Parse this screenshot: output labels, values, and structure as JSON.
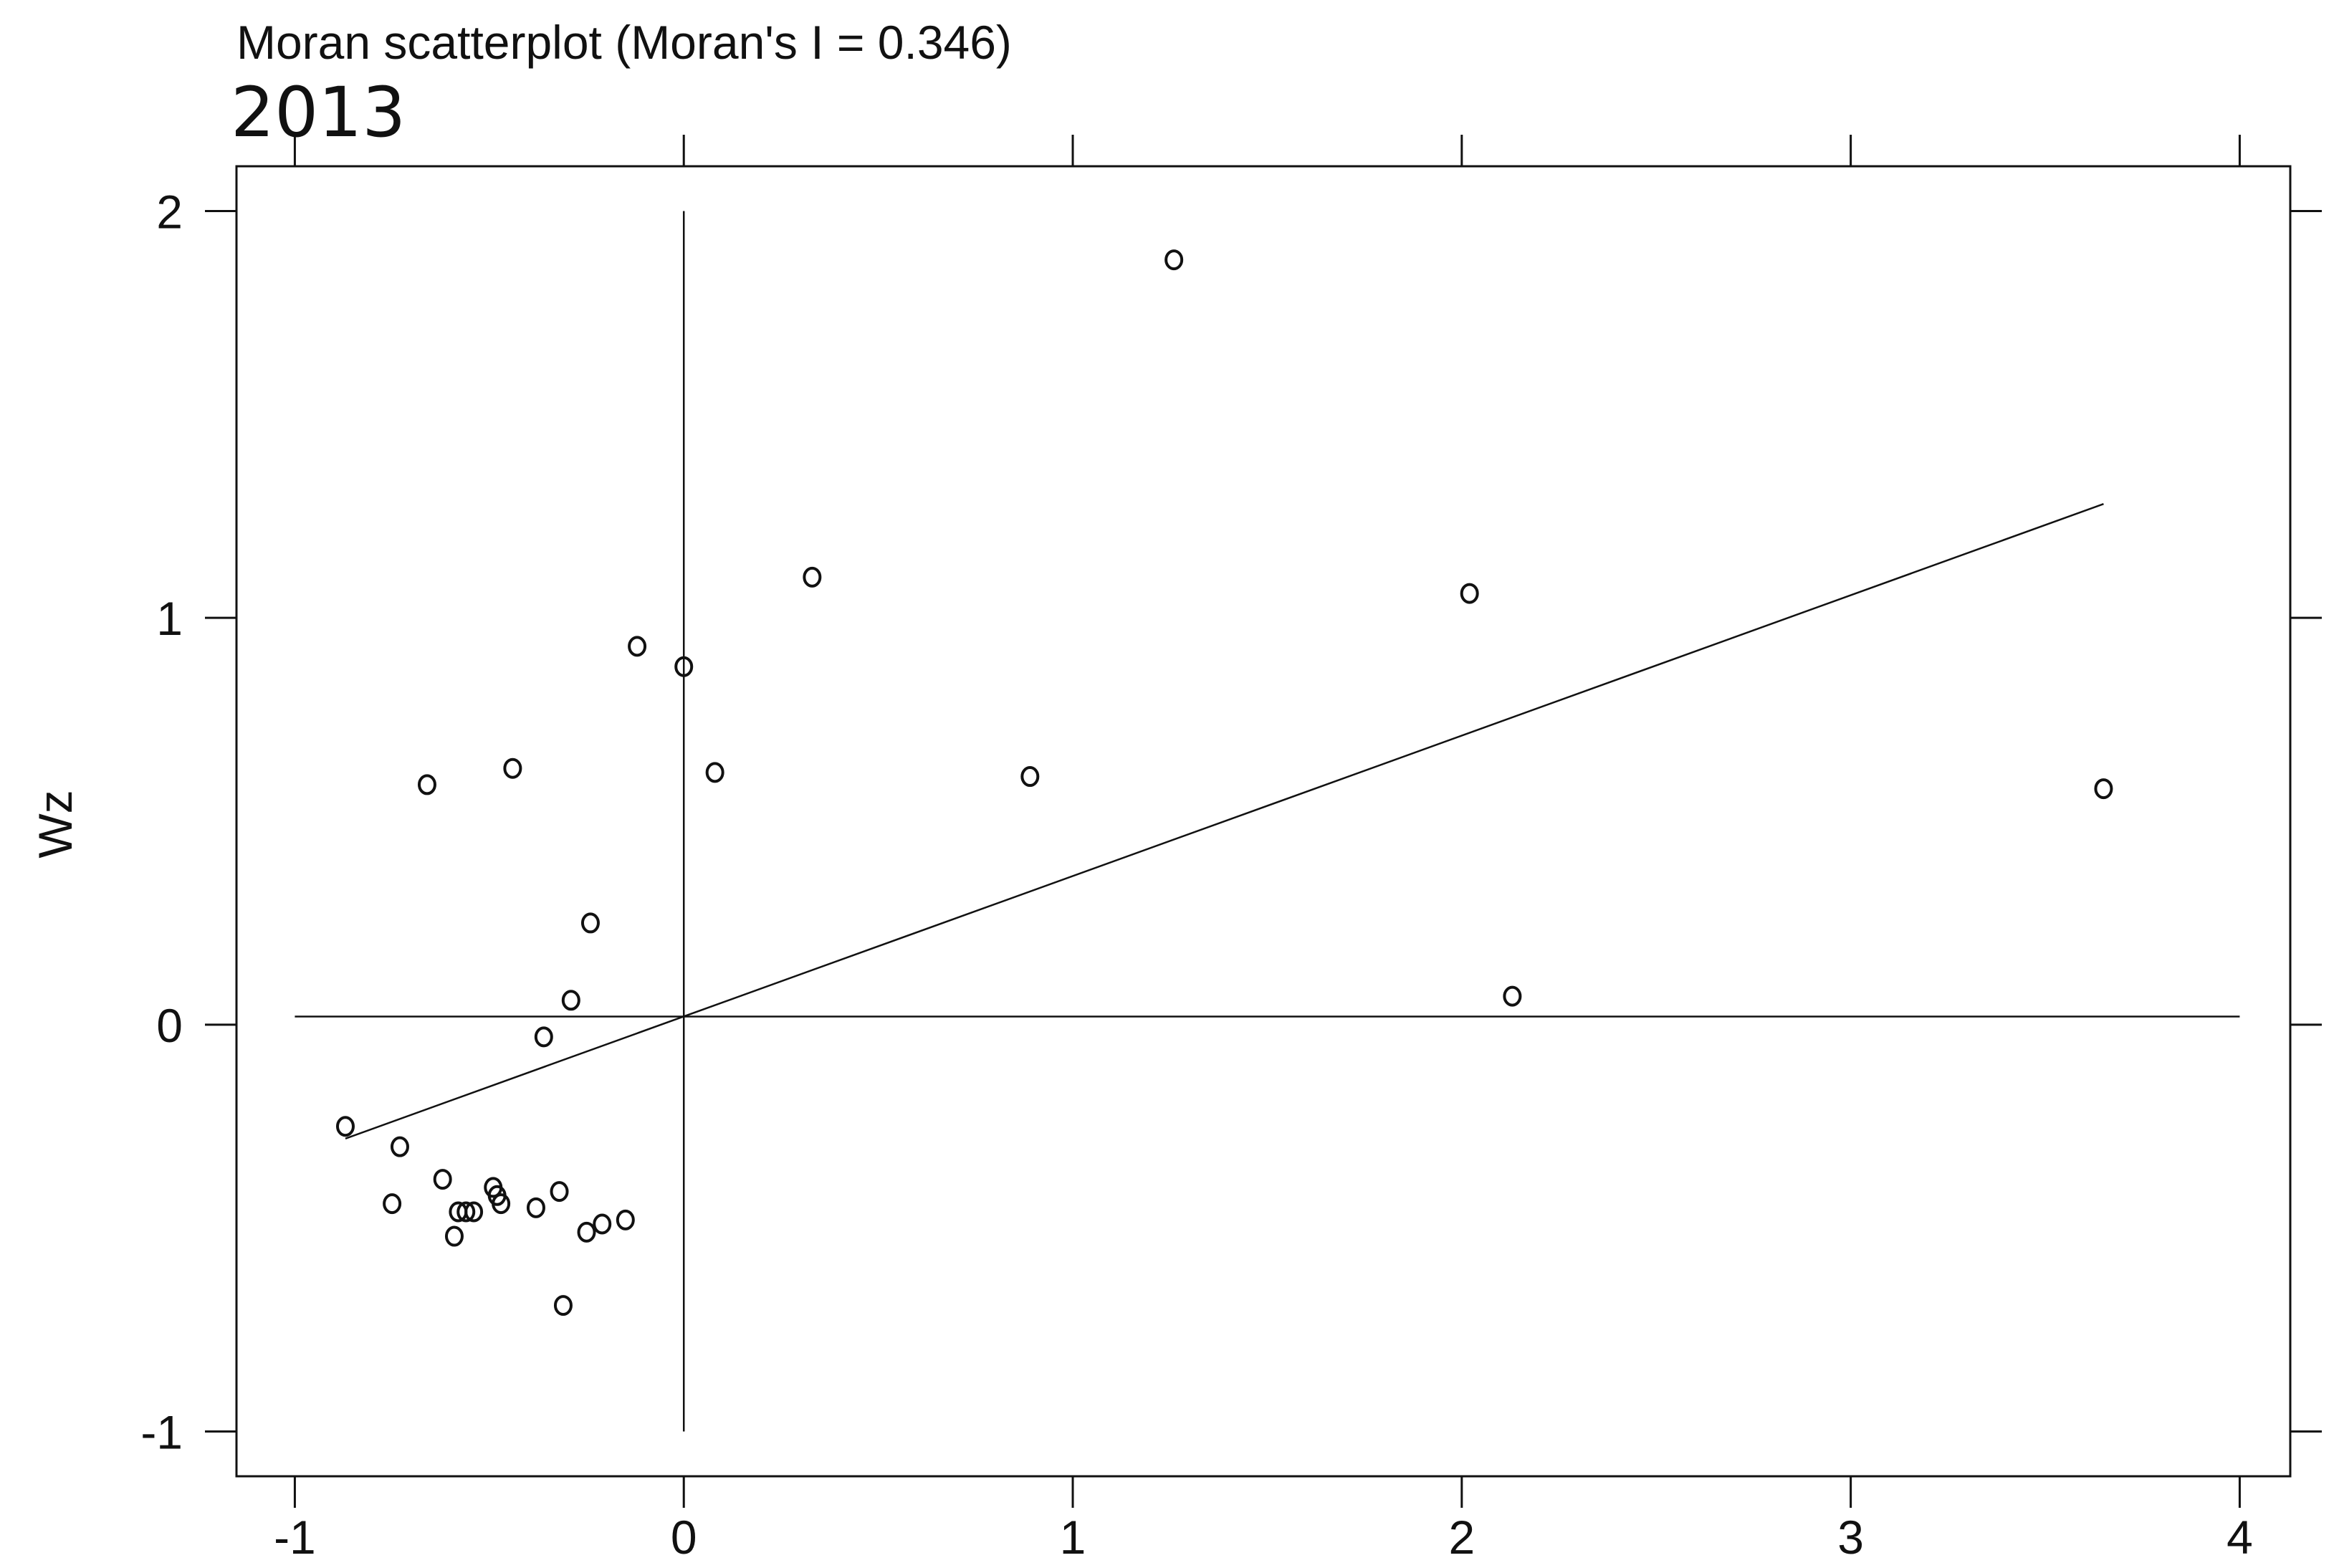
{
  "chart_data": {
    "type": "scatter",
    "title": "Moran scatterplot (Moran's I = 0.346)",
    "subtitle": "2013",
    "xlabel": "",
    "ylabel": "Wz",
    "xlim": [
      -1.15,
      4.13
    ],
    "ylim": [
      -1.11,
      2.11
    ],
    "x_ticks": [
      -1,
      0,
      1,
      2,
      3,
      4
    ],
    "y_ticks": [
      -1,
      0,
      1,
      2
    ],
    "x_tick_labels": [
      "-1",
      "0",
      "1",
      "2",
      "3",
      "4"
    ],
    "y_tick_labels": [
      "-1",
      "0",
      "1",
      "2"
    ],
    "grid": false,
    "legend": "none",
    "colors": {
      "points": "#111111",
      "lines": "#111111",
      "frame": "#111111"
    },
    "reference_lines": {
      "vertical_x": 0,
      "horizontal_y": 0.02,
      "vertical_span": [
        -1,
        2
      ],
      "horizontal_span": [
        -1,
        4
      ]
    },
    "fit_line": {
      "x": [
        -0.87,
        3.65
      ],
      "y": [
        -0.28,
        1.28
      ]
    },
    "points": [
      {
        "x": 1.26,
        "y": 1.88
      },
      {
        "x": 2.02,
        "y": 1.06
      },
      {
        "x": 3.65,
        "y": 0.58
      },
      {
        "x": 2.13,
        "y": 0.07
      },
      {
        "x": 0.33,
        "y": 1.1
      },
      {
        "x": 0.89,
        "y": 0.61
      },
      {
        "x": 0.08,
        "y": 0.62
      },
      {
        "x": 0.0,
        "y": 0.88
      },
      {
        "x": -0.12,
        "y": 0.93
      },
      {
        "x": -0.44,
        "y": 0.63
      },
      {
        "x": -0.66,
        "y": 0.59
      },
      {
        "x": -0.24,
        "y": 0.25
      },
      {
        "x": -0.29,
        "y": 0.06
      },
      {
        "x": -0.36,
        "y": -0.03
      },
      {
        "x": -0.87,
        "y": -0.25
      },
      {
        "x": -0.73,
        "y": -0.3
      },
      {
        "x": -0.75,
        "y": -0.44
      },
      {
        "x": -0.62,
        "y": -0.38
      },
      {
        "x": -0.59,
        "y": -0.52
      },
      {
        "x": -0.58,
        "y": -0.46
      },
      {
        "x": -0.56,
        "y": -0.46
      },
      {
        "x": -0.54,
        "y": -0.46
      },
      {
        "x": -0.49,
        "y": -0.4
      },
      {
        "x": -0.48,
        "y": -0.42
      },
      {
        "x": -0.47,
        "y": -0.44
      },
      {
        "x": -0.38,
        "y": -0.45
      },
      {
        "x": -0.32,
        "y": -0.41
      },
      {
        "x": -0.25,
        "y": -0.51
      },
      {
        "x": -0.21,
        "y": -0.49
      },
      {
        "x": -0.15,
        "y": -0.48
      },
      {
        "x": -0.31,
        "y": -0.69
      }
    ]
  }
}
